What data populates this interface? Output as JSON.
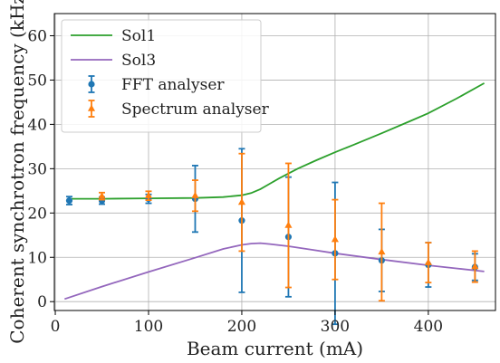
{
  "chart_data": {
    "type": "line",
    "xlabel": "Beam current (mA)",
    "ylabel": "Coherent synchrotron frequency (kHz)",
    "xlim": [
      -1,
      472
    ],
    "ylim": [
      -2,
      65
    ],
    "x_ticks": [
      0,
      100,
      200,
      300,
      400
    ],
    "y_ticks": [
      0,
      10,
      20,
      30,
      40,
      50,
      60
    ],
    "grid": true,
    "legend_position": "top-left",
    "series": [
      {
        "name": "Sol1",
        "type": "line",
        "color": "#2ca02c",
        "x": [
          15,
          50,
          100,
          150,
          180,
          200,
          210,
          220,
          230,
          240,
          250,
          260,
          280,
          300,
          320,
          350,
          380,
          400,
          430,
          460
        ],
        "y": [
          23.2,
          23.2,
          23.3,
          23.4,
          23.6,
          24.0,
          24.5,
          25.4,
          26.6,
          27.8,
          28.9,
          30.0,
          31.9,
          33.7,
          35.4,
          38.0,
          40.7,
          42.5,
          45.8,
          49.3
        ]
      },
      {
        "name": "Sol3",
        "type": "line",
        "color": "#9467bd",
        "x": [
          10,
          50,
          100,
          150,
          180,
          200,
          210,
          220,
          230,
          250,
          275,
          300,
          350,
          400,
          430,
          460
        ],
        "y": [
          0.6,
          3.4,
          6.7,
          9.9,
          11.9,
          12.8,
          13.1,
          13.2,
          13.0,
          12.5,
          11.7,
          10.9,
          9.5,
          8.2,
          7.5,
          6.8
        ]
      },
      {
        "name": "FFT analyser",
        "type": "errorbar",
        "color": "#1f77b4",
        "marker": "circle",
        "x": [
          15,
          50,
          100,
          150,
          200,
          250,
          300,
          350,
          400,
          450
        ],
        "y": [
          22.8,
          22.8,
          23.2,
          23.2,
          18.3,
          14.6,
          10.9,
          9.3,
          8.3,
          7.8
        ],
        "y_err": [
          0.9,
          0.8,
          1.0,
          7.5,
          16.2,
          13.5,
          16.0,
          7.0,
          5.0,
          3.0
        ]
      },
      {
        "name": "Spectrum analyser",
        "type": "errorbar",
        "color": "#ff7f0e",
        "marker": "triangle",
        "x": [
          50,
          100,
          150,
          200,
          250,
          300,
          350,
          400,
          450
        ],
        "y": [
          23.8,
          23.9,
          23.9,
          22.4,
          17.2,
          14.0,
          11.2,
          8.8,
          7.9
        ],
        "y_err": [
          0.8,
          1.0,
          3.5,
          11.0,
          14.0,
          9.0,
          11.0,
          4.5,
          3.5
        ]
      }
    ]
  }
}
